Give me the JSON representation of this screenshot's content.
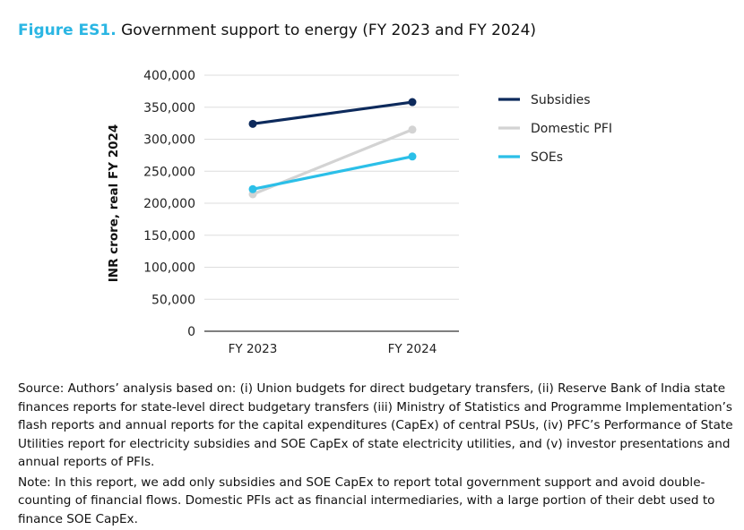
{
  "figure_label": "Figure ES1.",
  "figure_title": "Government support to energy (FY 2023 and FY 2024)",
  "chart_data": {
    "type": "line",
    "categories": [
      "FY 2023",
      "FY 2024"
    ],
    "ylabel": "INR crore, real FY 2024",
    "xlabel": "",
    "ylim": [
      0,
      400000
    ],
    "yticks": [
      "0",
      "50,000",
      "100,000",
      "150,000",
      "200,000",
      "250,000",
      "300,000",
      "350,000",
      "400,000"
    ],
    "ytick_values": [
      0,
      50000,
      100000,
      150000,
      200000,
      250000,
      300000,
      350000,
      400000
    ],
    "grid": true,
    "legend_position": "right",
    "series": [
      {
        "name": "Subsidies",
        "values": [
          324000,
          358000
        ],
        "color": "#0d2a5c"
      },
      {
        "name": "Domestic PFI",
        "values": [
          214000,
          315000
        ],
        "color": "#d3d3d3"
      },
      {
        "name": "SOEs",
        "values": [
          222000,
          273000
        ],
        "color": "#2bbfe8"
      }
    ]
  },
  "source_note": "Source: Authors’ analysis based on: (i) Union budgets for direct budgetary transfers, (ii) Reserve Bank of India state finances reports for state-level direct budgetary transfers (iii) Ministry of Statistics and Programme Implementation’s flash reports and annual reports for the capital expenditures (CapEx) of central PSUs, (iv) PFC’s Performance of State Utilities report for electricity subsidies and SOE CapEx of state electricity utilities, and (v) investor presentations and annual reports of PFIs.",
  "note": "Note: In this report, we add only subsidies and SOE CapEx to report total government support and avoid double-counting of financial flows. Domestic PFIs act as financial intermediaries, with a large portion of their debt used to finance SOE CapEx."
}
